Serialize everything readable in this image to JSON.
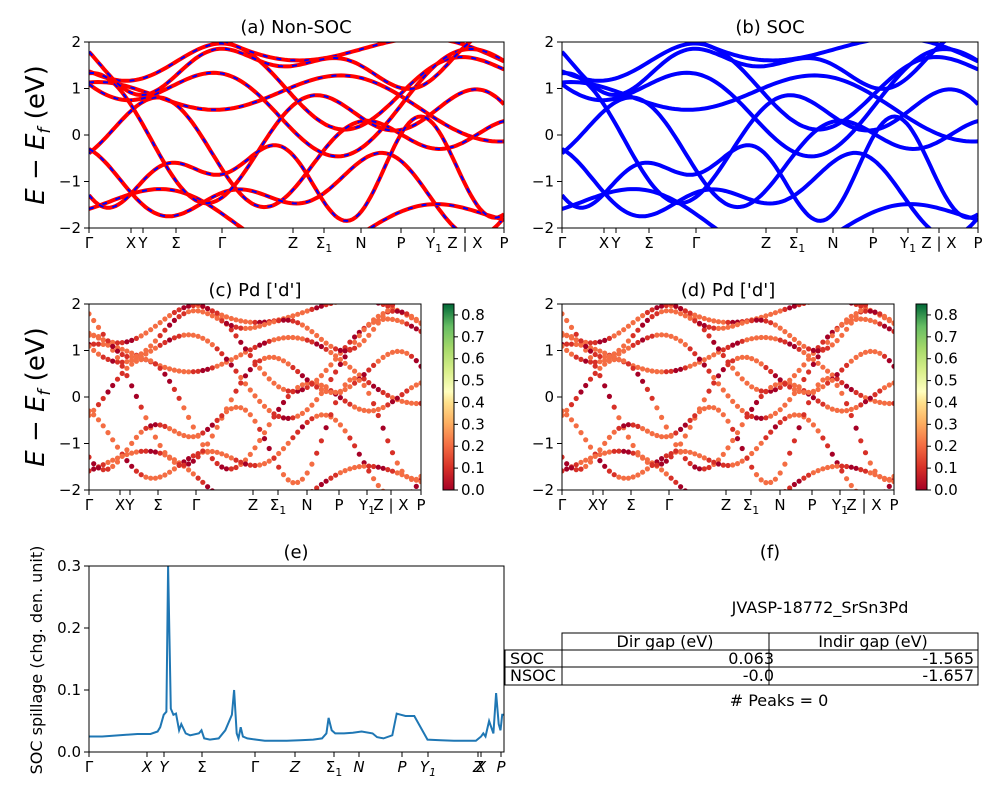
{
  "figure": {
    "ylabel_bands": "E − E",
    "ylabel_bands_sub": "f",
    "ylabel_bands_unit": " (eV)"
  },
  "chart_data": [
    {
      "id": "a",
      "type": "line",
      "title": "(a) Non-SOC",
      "ylim": [
        -2,
        2
      ],
      "yticks": [
        "2",
        "1",
        "0",
        "−1",
        "−2"
      ],
      "kpoints": [
        "Γ",
        "X",
        "Y",
        "Σ",
        "Γ",
        "Z",
        "Σ1",
        "N",
        "P",
        "Y1",
        "Z | X",
        "P"
      ],
      "series_colors": [
        "#ff0000",
        "#0000ff"
      ],
      "linestyle": "red solid with blue dashed overlay"
    },
    {
      "id": "b",
      "type": "line",
      "title": "(b) SOC",
      "ylim": [
        -2,
        2
      ],
      "yticks": [
        "2",
        "1",
        "0",
        "−1",
        "−2"
      ],
      "kpoints": [
        "Γ",
        "X",
        "Y",
        "Σ",
        "Γ",
        "Z",
        "Σ1",
        "N",
        "P",
        "Y1",
        "Z | X",
        "P"
      ],
      "series_colors": [
        "#0000ff"
      ]
    },
    {
      "id": "c",
      "type": "scatter",
      "title": "(c)  Pd ['d']",
      "ylim": [
        -2,
        2
      ],
      "yticks": [
        "2",
        "1",
        "0",
        "−1",
        "−2"
      ],
      "kpoints": [
        "Γ",
        "X",
        "Y",
        "Σ",
        "Γ",
        "Z",
        "Σ1",
        "N",
        "P",
        "Y1",
        "Z | X",
        "P"
      ],
      "colorbar": {
        "min": 0.0,
        "max": 0.85,
        "ticks": [
          "0.8",
          "0.7",
          "0.6",
          "0.5",
          "0.4",
          "0.3",
          "0.2",
          "0.1",
          "0.0"
        ],
        "colormap": "RdYlGn"
      }
    },
    {
      "id": "d",
      "type": "scatter",
      "title": "(d) Pd ['d']",
      "ylim": [
        -2,
        2
      ],
      "yticks": [
        "2",
        "1",
        "0",
        "−1",
        "−2"
      ],
      "kpoints": [
        "Γ",
        "X",
        "Y",
        "Σ",
        "Γ",
        "Z",
        "Σ1",
        "N",
        "P",
        "Y1",
        "Z | X",
        "P"
      ],
      "colorbar": {
        "min": 0.0,
        "max": 0.85,
        "ticks": [
          "0.8",
          "0.7",
          "0.6",
          "0.5",
          "0.4",
          "0.3",
          "0.2",
          "0.1",
          "0.0"
        ],
        "colormap": "RdYlGn"
      }
    },
    {
      "id": "e",
      "type": "line",
      "title": "(e)",
      "ylabel": "SOC spillage (chg. den. unit)",
      "ylim": [
        0,
        0.3
      ],
      "yticks": [
        "0.3",
        "0.2",
        "0.1",
        "0.0"
      ],
      "kpoints": [
        "Γ",
        "X",
        "Y",
        "Σ",
        "Γ",
        "Z",
        "Σ1",
        "N",
        "P",
        "Y1",
        "Z",
        "X",
        "P"
      ],
      "color": "#1f77b4",
      "x": [
        0,
        0.3,
        0.5,
        0.9,
        1.1,
        1.4,
        1.56,
        1.62,
        1.7,
        1.76,
        1.8,
        1.86,
        1.92,
        1.98,
        2.05,
        2.1,
        2.2,
        2.3,
        2.5,
        2.56,
        2.62,
        2.75,
        2.95,
        3.1,
        3.25,
        3.3,
        3.36,
        3.4,
        3.45,
        3.5,
        3.6,
        3.8,
        4.0,
        4.5,
        4.8,
        5.1,
        5.3,
        5.4,
        5.45,
        5.52,
        5.6,
        5.8,
        6.0,
        6.2,
        6.45,
        6.55,
        6.7,
        6.9,
        7.0,
        7.1,
        7.2,
        7.4,
        7.7,
        8.0,
        8.3,
        8.6,
        8.8,
        8.92,
        8.97,
        9.02,
        9.1,
        9.2,
        9.26,
        9.32,
        9.36,
        9.4,
        9.44
      ],
      "y": [
        0.025,
        0.025,
        0.026,
        0.028,
        0.029,
        0.029,
        0.033,
        0.04,
        0.06,
        0.065,
        0.3,
        0.07,
        0.06,
        0.062,
        0.035,
        0.045,
        0.03,
        0.027,
        0.03,
        0.035,
        0.022,
        0.02,
        0.022,
        0.035,
        0.06,
        0.1,
        0.03,
        0.022,
        0.04,
        0.025,
        0.022,
        0.02,
        0.018,
        0.018,
        0.019,
        0.02,
        0.022,
        0.03,
        0.055,
        0.035,
        0.03,
        0.03,
        0.031,
        0.033,
        0.03,
        0.024,
        0.022,
        0.027,
        0.062,
        0.06,
        0.058,
        0.058,
        0.02,
        0.019,
        0.018,
        0.018,
        0.018,
        0.025,
        0.03,
        0.025,
        0.05,
        0.03,
        0.095,
        0.045,
        0.035,
        0.06,
        0.06
      ]
    },
    {
      "id": "f",
      "type": "table",
      "title": "(f)",
      "table_title": "JVASP-18772_SrSn3Pd",
      "columns": [
        "Dir gap (eV)",
        "Indir gap (eV)"
      ],
      "rows": [
        {
          "label": "SOC",
          "values": [
            "0.063",
            "-1.565"
          ]
        },
        {
          "label": "NSOC",
          "values": [
            "-0.0",
            "-1.657"
          ]
        }
      ],
      "footer": "# Peaks = 0"
    }
  ]
}
